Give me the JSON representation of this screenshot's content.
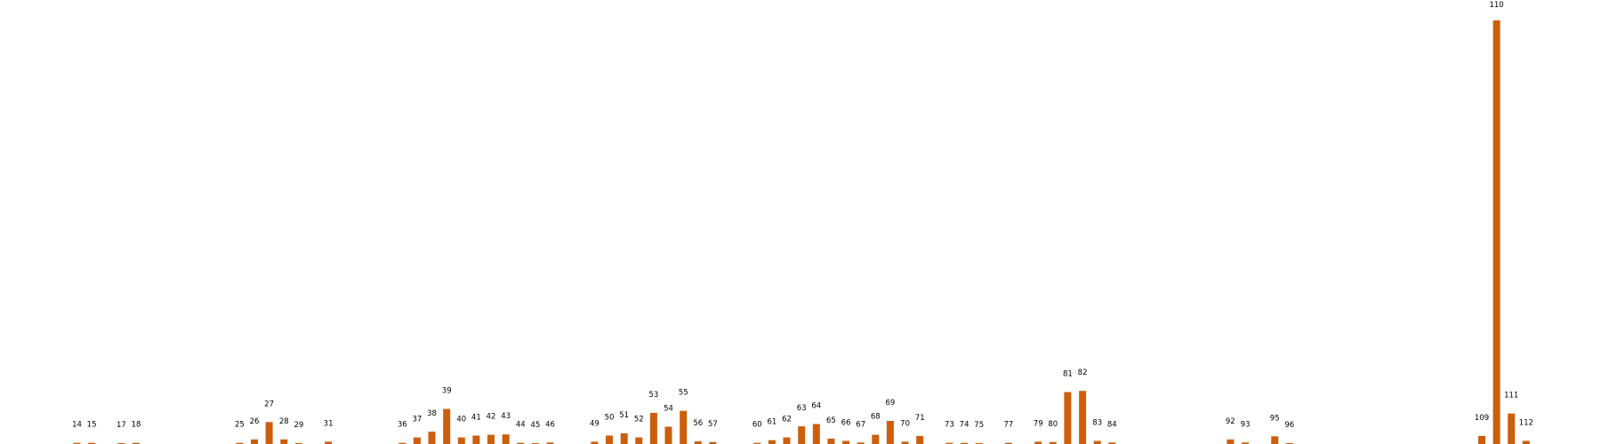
{
  "colors": {
    "bar": "#cc5e0c",
    "background": "#ffffff"
  },
  "chart_data": {
    "type": "bar",
    "title": "",
    "xlabel": "",
    "ylabel": "",
    "axes_visible": false,
    "grid": false,
    "ylim": [
      0,
      110
    ],
    "categories": [
      "14",
      "15",
      "17",
      "18",
      "25",
      "26",
      "27",
      "28",
      "29",
      "31",
      "36",
      "37",
      "38",
      "39",
      "40",
      "41",
      "42",
      "43",
      "44",
      "45",
      "46",
      "49",
      "50",
      "51",
      "52",
      "53",
      "54",
      "55",
      "56",
      "57",
      "60",
      "61",
      "62",
      "63",
      "64",
      "65",
      "66",
      "67",
      "68",
      "69",
      "70",
      "71",
      "73",
      "74",
      "75",
      "77",
      "79",
      "80",
      "81",
      "82",
      "83",
      "84",
      "92",
      "93",
      "95",
      "96",
      "109",
      "110",
      "111",
      "112"
    ],
    "category_positions": [
      14,
      15,
      17,
      18,
      25,
      26,
      27,
      28,
      29,
      31,
      36,
      37,
      38,
      39,
      40,
      41,
      42,
      43,
      44,
      45,
      46,
      49,
      50,
      51,
      52,
      53,
      54,
      55,
      56,
      57,
      60,
      61,
      62,
      63,
      64,
      65,
      66,
      67,
      68,
      69,
      70,
      71,
      73,
      74,
      75,
      77,
      79,
      80,
      81,
      82,
      83,
      84,
      92,
      93,
      95,
      96,
      109,
      110,
      111,
      112
    ],
    "values": [
      0.3,
      0.3,
      0.2,
      0.3,
      0.3,
      1.2,
      5.7,
      1.2,
      0.2,
      0.6,
      0.3,
      1.7,
      3.2,
      9.1,
      1.7,
      2.2,
      2.4,
      2.5,
      0.3,
      0.1,
      0.4,
      0.6,
      2.2,
      2.8,
      1.7,
      8.1,
      4.5,
      8.6,
      0.7,
      0.5,
      0.3,
      1.0,
      1.7,
      4.6,
      5.2,
      1.4,
      0.8,
      0.4,
      2.4,
      6.0,
      0.6,
      2.1,
      0.3,
      0.3,
      0.1,
      0.3,
      0.6,
      0.5,
      13.5,
      13.8,
      0.8,
      0.4,
      1.2,
      0.4,
      2.0,
      0.1,
      2.1,
      110,
      7.9,
      0.8
    ]
  }
}
